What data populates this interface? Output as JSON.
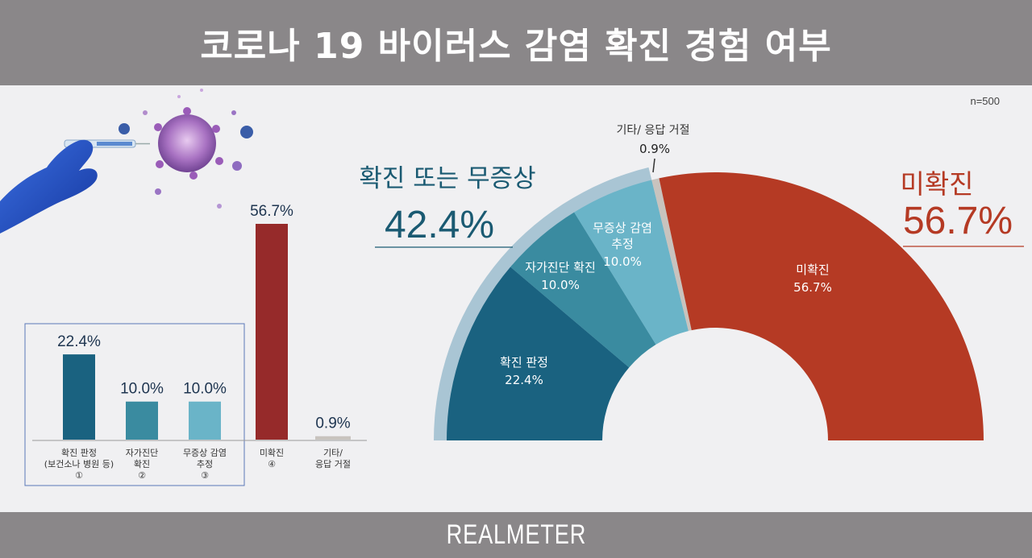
{
  "title": "코로나 19 바이러스 감염 확진 경험 여부",
  "sample": "n=500",
  "brand": "REALMETER",
  "colors": {
    "confirmed_dark": "#1a6280",
    "self_test": "#3a8ba0",
    "asymptomatic": "#6ab4c8",
    "unconfirmed": "#b53a24",
    "unconfirmed_bar": "#962a2a",
    "other": "#c8c3be",
    "accent_text": "#1a5a72"
  },
  "chart_data": [
    {
      "type": "bar",
      "categories": [
        "확진 판정 (보건소나 병원 등) ①",
        "자가진단 확진 ②",
        "무증상 감염 추정 ③",
        "미확진 ④",
        "기타/ 응답 거절"
      ],
      "category_lines": [
        [
          "확진 판정",
          "(보건소나 병원 등)",
          "①"
        ],
        [
          "자가진단",
          "확진",
          "②"
        ],
        [
          "무증상 감염",
          "추정",
          "③"
        ],
        [
          "미확진",
          "④"
        ],
        [
          "기타/",
          "응답 거절"
        ]
      ],
      "values": [
        22.4,
        10.0,
        10.0,
        56.7,
        0.9
      ],
      "value_labels": [
        "22.4%",
        "10.0%",
        "10.0%",
        "56.7%",
        "0.9%"
      ],
      "ylim": [
        0,
        56.7
      ]
    },
    {
      "type": "pie",
      "subtype": "semi-donut",
      "slices": [
        {
          "label": "확진 판정",
          "value": 22.4,
          "value_label": "22.4%"
        },
        {
          "label": "자가진단 확진",
          "value": 10.0,
          "value_label": "10.0%"
        },
        {
          "label": "무증상 감염 추정",
          "value": 10.0,
          "value_label": "10.0%",
          "label_lines": [
            "무증상 감염",
            "추정"
          ]
        },
        {
          "label": "기타/ 응답 거절",
          "value": 0.9,
          "value_label": "0.9%"
        },
        {
          "label": "미확진",
          "value": 56.7,
          "value_label": "56.7%"
        }
      ],
      "groups": [
        {
          "label": "확진 또는 무증상",
          "value": 42.4,
          "value_label": "42.4%"
        },
        {
          "label": "미확진",
          "value": 56.7,
          "value_label": "56.7%"
        }
      ]
    }
  ]
}
